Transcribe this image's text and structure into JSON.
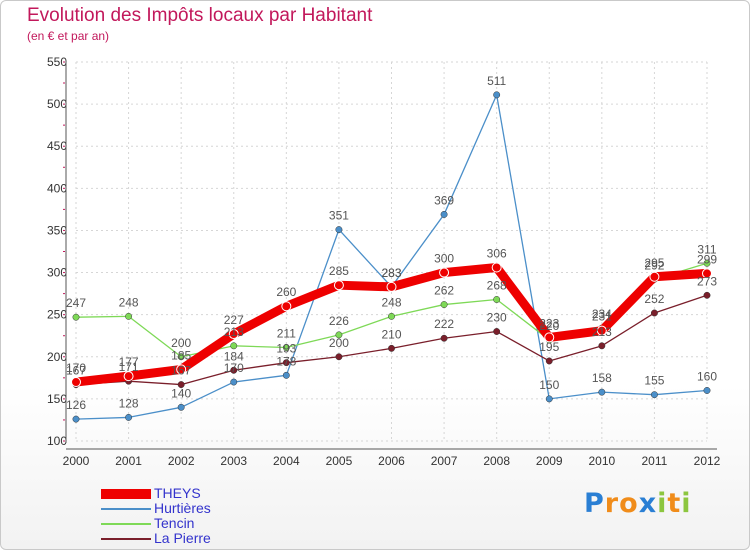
{
  "chart_data": {
    "type": "line",
    "title": "Evolution des Impôts locaux par Habitant",
    "subtitle": "(en € et par an)",
    "xlabel": "",
    "ylabel": "",
    "ylim": [
      100,
      550
    ],
    "yticks": [
      100,
      150,
      200,
      250,
      300,
      350,
      400,
      450,
      500,
      550
    ],
    "categories": [
      "2000",
      "2001",
      "2002",
      "2003",
      "2004",
      "2005",
      "2006",
      "2007",
      "2008",
      "2009",
      "2010",
      "2011",
      "2012"
    ],
    "series": [
      {
        "name": "Hurtières",
        "color": "#4b8fc9",
        "values": [
          126,
          128,
          140,
          170,
          178,
          351,
          283,
          369,
          511,
          150,
          158,
          155,
          160
        ]
      },
      {
        "name": "Tencin",
        "color": "#7ed957",
        "values": [
          247,
          248,
          200,
          213,
          211,
          226,
          248,
          262,
          268,
          220,
          234,
          292,
          311
        ]
      },
      {
        "name": "La Pierre",
        "color": "#7a1f2b",
        "values": [
          167,
          171,
          167,
          184,
          193,
          200,
          210,
          222,
          230,
          195,
          213,
          252,
          273
        ]
      },
      {
        "name": "THEYS",
        "color": "#ee0000",
        "values": [
          170,
          177,
          185,
          227,
          260,
          285,
          283,
          300,
          306,
          223,
          231,
          295,
          299
        ]
      }
    ],
    "legend": [
      "THEYS",
      "Hurtières",
      "Tencin",
      "La Pierre"
    ],
    "legend_position": "bottom-left"
  },
  "branding": {
    "letters": [
      "P",
      "r",
      "o",
      "x",
      "i",
      "t",
      "i"
    ],
    "colors": [
      "#2a7fd4",
      "#f08c1a",
      "#f08c1a",
      "#2a7fd4",
      "#8cc63f",
      "#f08c1a",
      "#8cc63f"
    ]
  }
}
